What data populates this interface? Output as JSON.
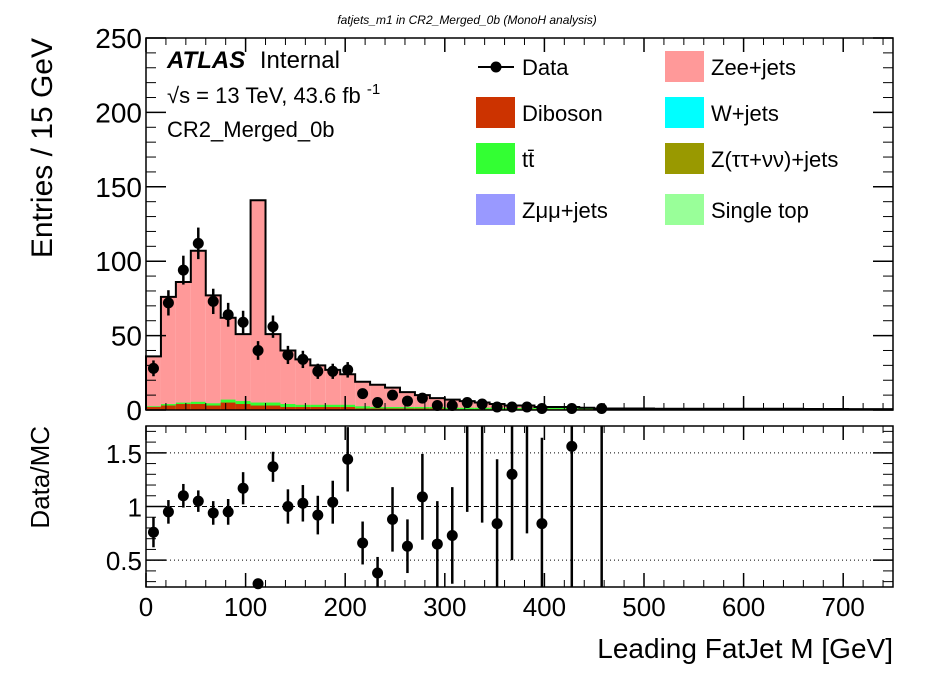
{
  "chart_data": {
    "type": "bar",
    "title": "fatjets_m1 in CR2_Merged_0b (MonoH analysis)",
    "xlabel": "Leading FatJet M [GeV]",
    "ylabel": "Entries / 15 GeV",
    "ratio_ylabel": "Data/MC",
    "atlas_label": "ATLAS",
    "internal_label": "Internal",
    "energy_label": "√s = 13 TeV, 43.6 fb",
    "energy_sup": "-1",
    "region_label": "CR2_Merged_0b",
    "xlim": [
      0,
      750
    ],
    "ylim": [
      0,
      250
    ],
    "ratio_ylim": [
      0.25,
      1.75
    ],
    "bin_width": 15,
    "x_ticks": [
      "0",
      "100",
      "200",
      "300",
      "400",
      "500",
      "600",
      "700"
    ],
    "y_ticks": [
      "0",
      "50",
      "100",
      "150",
      "200",
      "250"
    ],
    "ratio_ticks": [
      "0.5",
      "1",
      "1.5"
    ],
    "legend": [
      {
        "label": "Data",
        "kind": "marker",
        "color": "#000000"
      },
      {
        "label": "Zee+jets",
        "kind": "fill",
        "color": "#ff9999"
      },
      {
        "label": "Diboson",
        "kind": "fill",
        "color": "#cc3300"
      },
      {
        "label": "W+jets",
        "kind": "fill",
        "color": "#00ffff"
      },
      {
        "label": "tt̄",
        "kind": "fill",
        "color": "#33ff33"
      },
      {
        "label": "Z(ττ+νν)+jets",
        "kind": "fill",
        "color": "#999900"
      },
      {
        "label": "Zμμ+jets",
        "kind": "fill",
        "color": "#9999ff"
      },
      {
        "label": "Single top",
        "kind": "fill",
        "color": "#99ff99"
      }
    ],
    "mc_total": [
      36,
      76,
      86,
      107,
      77,
      62,
      51,
      141,
      51,
      40,
      34,
      30,
      27,
      24,
      19,
      17,
      15,
      12,
      10,
      8,
      7,
      6,
      5,
      4,
      3,
      3,
      2,
      2,
      2,
      1.5,
      1,
      1,
      1,
      1,
      0.8,
      0.8,
      0.8,
      0.8,
      0.8,
      0.8,
      0.8,
      0.8,
      0.8,
      0.8,
      0.7,
      0.7,
      0.7,
      0.6,
      0.6,
      0.6
    ],
    "diboson": [
      2,
      3,
      4,
      4,
      3,
      5,
      4,
      3,
      3,
      2,
      2,
      2,
      2,
      2,
      1,
      1,
      1,
      1,
      1,
      1,
      0.5,
      0.5,
      0.5,
      0.5,
      0.5,
      0.5,
      0.5,
      0.5,
      0.5,
      0.5,
      0.3,
      0.3,
      0.3,
      0.3,
      0.3,
      0.3,
      0.3,
      0.3,
      0.3,
      0.3,
      0.3,
      0.3,
      0.3,
      0.3,
      0.3,
      0.3,
      0.3,
      0.3,
      0.3,
      0.3
    ],
    "ttbar": [
      0.5,
      1,
      1,
      1.5,
      1.5,
      2,
      2,
      2,
      2,
      2,
      1.5,
      1.5,
      1.5,
      1.5,
      1.5,
      1,
      1,
      1,
      1,
      1,
      1,
      1,
      1,
      1,
      0.8,
      0.8,
      0.8,
      0.8,
      0.8,
      0.8,
      0.6,
      0.6,
      0.6,
      0.6,
      0.5,
      0.5,
      0.5,
      0.5,
      0.5,
      0.5,
      0.5,
      0.5,
      0.5,
      0.5,
      0.4,
      0.4,
      0.4,
      0.4,
      0.4,
      0.4
    ],
    "data": [
      {
        "x": 7.5,
        "y": 28,
        "err": 5.3
      },
      {
        "x": 22.5,
        "y": 72,
        "err": 8.5
      },
      {
        "x": 37.5,
        "y": 94,
        "err": 9.7
      },
      {
        "x": 52.5,
        "y": 112,
        "err": 10.6
      },
      {
        "x": 67.5,
        "y": 73,
        "err": 8.5
      },
      {
        "x": 82.5,
        "y": 64,
        "err": 8.0
      },
      {
        "x": 97.5,
        "y": 59,
        "err": 7.7
      },
      {
        "x": 112.5,
        "y": 40,
        "err": 6.3
      },
      {
        "x": 127.5,
        "y": 56,
        "err": 7.5
      },
      {
        "x": 142.5,
        "y": 37,
        "err": 6.1
      },
      {
        "x": 157.5,
        "y": 34,
        "err": 5.8
      },
      {
        "x": 172.5,
        "y": 26,
        "err": 5.1
      },
      {
        "x": 187.5,
        "y": 26,
        "err": 5.1
      },
      {
        "x": 202.5,
        "y": 27,
        "err": 5.2
      },
      {
        "x": 217.5,
        "y": 11,
        "err": 3.3
      },
      {
        "x": 232.5,
        "y": 5,
        "err": 2.2
      },
      {
        "x": 247.5,
        "y": 10,
        "err": 3.2
      },
      {
        "x": 262.5,
        "y": 6,
        "err": 2.4
      },
      {
        "x": 277.5,
        "y": 8,
        "err": 2.8
      },
      {
        "x": 292.5,
        "y": 3,
        "err": 1.7
      },
      {
        "x": 307.5,
        "y": 3,
        "err": 1.7
      },
      {
        "x": 322.5,
        "y": 5,
        "err": 2.2
      },
      {
        "x": 337.5,
        "y": 4,
        "err": 2.0
      },
      {
        "x": 352.5,
        "y": 2,
        "err": 1.4
      },
      {
        "x": 367.5,
        "y": 2,
        "err": 1.4
      },
      {
        "x": 382.5,
        "y": 2,
        "err": 1.4
      },
      {
        "x": 397.5,
        "y": 1,
        "err": 1.0
      },
      {
        "x": 427.5,
        "y": 1,
        "err": 1.0
      },
      {
        "x": 457.5,
        "y": 1,
        "err": 1.0
      }
    ],
    "ratio": [
      {
        "x": 7.5,
        "y": 0.76,
        "err": 0.14
      },
      {
        "x": 22.5,
        "y": 0.95,
        "err": 0.11
      },
      {
        "x": 37.5,
        "y": 1.1,
        "err": 0.11
      },
      {
        "x": 52.5,
        "y": 1.05,
        "err": 0.1
      },
      {
        "x": 67.5,
        "y": 0.94,
        "err": 0.11
      },
      {
        "x": 82.5,
        "y": 0.95,
        "err": 0.12
      },
      {
        "x": 97.5,
        "y": 1.17,
        "err": 0.15
      },
      {
        "x": 112.5,
        "y": 0.28,
        "err": 0.05
      },
      {
        "x": 127.5,
        "y": 1.37,
        "err": 0.14
      },
      {
        "x": 142.5,
        "y": 1.0,
        "err": 0.16
      },
      {
        "x": 157.5,
        "y": 1.03,
        "err": 0.17
      },
      {
        "x": 172.5,
        "y": 0.92,
        "err": 0.18
      },
      {
        "x": 187.5,
        "y": 1.04,
        "err": 0.2
      },
      {
        "x": 202.5,
        "y": 1.44,
        "err": 0.3
      },
      {
        "x": 217.5,
        "y": 0.66,
        "err": 0.2
      },
      {
        "x": 232.5,
        "y": 0.38,
        "err": 0.15
      },
      {
        "x": 247.5,
        "y": 0.88,
        "err": 0.3
      },
      {
        "x": 262.5,
        "y": 0.63,
        "err": 0.25
      },
      {
        "x": 277.5,
        "y": 1.09,
        "err": 0.4
      },
      {
        "x": 292.5,
        "y": 0.65,
        "err": 0.4
      },
      {
        "x": 307.5,
        "y": 0.73,
        "err": 0.45
      },
      {
        "x": 322.5,
        "y": 1.75,
        "err": 0.8
      },
      {
        "x": 337.5,
        "y": 1.75,
        "err": 0.9
      },
      {
        "x": 352.5,
        "y": 0.84,
        "err": 0.6
      },
      {
        "x": 367.5,
        "y": 1.3,
        "err": 0.8
      },
      {
        "x": 382.5,
        "y": 1.75,
        "err": 1.0
      },
      {
        "x": 397.5,
        "y": 0.84,
        "err": 0.8
      },
      {
        "x": 427.5,
        "y": 1.56,
        "err": 1.5
      },
      {
        "x": 457.5,
        "y": 1.75,
        "err": 2.0
      }
    ]
  }
}
